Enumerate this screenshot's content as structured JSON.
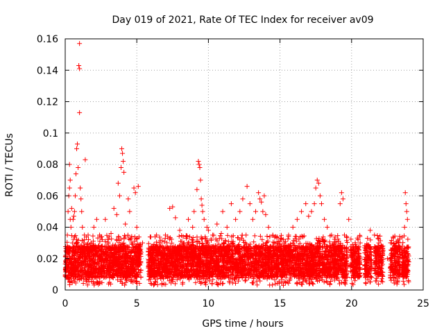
{
  "chart_data": {
    "type": "scatter",
    "title": "Day 019 of 2021, Rate Of TEC Index for receiver av09",
    "xlabel": "GPS time / hours",
    "ylabel": "ROTI / TECUs",
    "xlim": [
      0,
      25
    ],
    "ylim": [
      0,
      0.16
    ],
    "x_ticks": [
      "0",
      "5",
      "10",
      "15",
      "20",
      "25"
    ],
    "x_tick_values": [
      0,
      5,
      10,
      15,
      20,
      25
    ],
    "y_ticks": [
      "0",
      "0.02",
      "0.04",
      "0.06",
      "0.08",
      "0.1",
      "0.12",
      "0.14",
      "0.16"
    ],
    "y_tick_values": [
      0,
      0.02,
      0.04,
      0.06,
      0.08,
      0.1,
      0.12,
      0.14,
      0.16
    ],
    "grid": true,
    "marker": "+",
    "marker_color": "#ff0000",
    "series": [
      {
        "points": [
          [
            0.05,
            0.018
          ],
          [
            0.1,
            0.025
          ],
          [
            0.15,
            0.035
          ],
          [
            0.2,
            0.05
          ],
          [
            0.25,
            0.06
          ],
          [
            0.3,
            0.065
          ],
          [
            0.3,
            0.08
          ],
          [
            0.35,
            0.07
          ],
          [
            0.35,
            0.045
          ],
          [
            0.4,
            0.04
          ],
          [
            0.45,
            0.052
          ],
          [
            0.5,
            0.03
          ],
          [
            0.55,
            0.045
          ],
          [
            0.6,
            0.047
          ],
          [
            0.65,
            0.05
          ],
          [
            0.7,
            0.06
          ],
          [
            0.75,
            0.074
          ],
          [
            0.8,
            0.09
          ],
          [
            0.85,
            0.093
          ],
          [
            0.9,
            0.078
          ],
          [
            0.95,
            0.143
          ],
          [
            1.0,
            0.157
          ],
          [
            1.0,
            0.141
          ],
          [
            1.0,
            0.113
          ],
          [
            1.05,
            0.065
          ],
          [
            1.1,
            0.058
          ],
          [
            1.15,
            0.05
          ],
          [
            1.2,
            0.04
          ],
          [
            1.3,
            0.03
          ],
          [
            1.4,
            0.083
          ],
          [
            1.5,
            0.025
          ],
          [
            1.6,
            0.035
          ],
          [
            1.8,
            0.03
          ],
          [
            2.0,
            0.04
          ],
          [
            2.2,
            0.045
          ],
          [
            2.4,
            0.035
          ],
          [
            2.6,
            0.028
          ],
          [
            2.8,
            0.045
          ],
          [
            3.0,
            0.022
          ],
          [
            3.2,
            0.036
          ],
          [
            3.4,
            0.052
          ],
          [
            3.6,
            0.048
          ],
          [
            3.7,
            0.068
          ],
          [
            3.8,
            0.06
          ],
          [
            3.9,
            0.078
          ],
          [
            3.95,
            0.09
          ],
          [
            4.0,
            0.087
          ],
          [
            4.05,
            0.082
          ],
          [
            4.1,
            0.075
          ],
          [
            4.2,
            0.042
          ],
          [
            4.4,
            0.058
          ],
          [
            4.5,
            0.05
          ],
          [
            4.6,
            0.033
          ],
          [
            4.8,
            0.065
          ],
          [
            4.9,
            0.062
          ],
          [
            5.0,
            0.04
          ],
          [
            5.1,
            0.066
          ],
          [
            5.2,
            0.025
          ],
          [
            5.4,
            0.03
          ],
          [
            6.0,
            0.02
          ],
          [
            6.3,
            0.025
          ],
          [
            6.6,
            0.03
          ],
          [
            7.0,
            0.035
          ],
          [
            7.3,
            0.052
          ],
          [
            7.5,
            0.053
          ],
          [
            7.7,
            0.046
          ],
          [
            8.0,
            0.038
          ],
          [
            8.3,
            0.03
          ],
          [
            8.6,
            0.045
          ],
          [
            8.9,
            0.04
          ],
          [
            9.0,
            0.05
          ],
          [
            9.2,
            0.064
          ],
          [
            9.3,
            0.082
          ],
          [
            9.35,
            0.08
          ],
          [
            9.4,
            0.078
          ],
          [
            9.45,
            0.07
          ],
          [
            9.5,
            0.058
          ],
          [
            9.55,
            0.054
          ],
          [
            9.6,
            0.05
          ],
          [
            9.7,
            0.045
          ],
          [
            9.9,
            0.04
          ],
          [
            10.0,
            0.038
          ],
          [
            10.3,
            0.035
          ],
          [
            10.6,
            0.042
          ],
          [
            10.9,
            0.036
          ],
          [
            11.0,
            0.05
          ],
          [
            11.3,
            0.04
          ],
          [
            11.6,
            0.055
          ],
          [
            11.9,
            0.045
          ],
          [
            12.2,
            0.05
          ],
          [
            12.4,
            0.058
          ],
          [
            12.7,
            0.066
          ],
          [
            12.9,
            0.055
          ],
          [
            13.1,
            0.045
          ],
          [
            13.3,
            0.05
          ],
          [
            13.5,
            0.062
          ],
          [
            13.6,
            0.058
          ],
          [
            13.7,
            0.056
          ],
          [
            13.8,
            0.05
          ],
          [
            13.9,
            0.06
          ],
          [
            14.0,
            0.048
          ],
          [
            14.2,
            0.04
          ],
          [
            14.5,
            0.035
          ],
          [
            14.8,
            0.03
          ],
          [
            15.3,
            0.03
          ],
          [
            15.6,
            0.035
          ],
          [
            15.9,
            0.04
          ],
          [
            16.2,
            0.045
          ],
          [
            16.5,
            0.05
          ],
          [
            16.8,
            0.055
          ],
          [
            17.0,
            0.047
          ],
          [
            17.2,
            0.05
          ],
          [
            17.4,
            0.055
          ],
          [
            17.5,
            0.065
          ],
          [
            17.6,
            0.07
          ],
          [
            17.7,
            0.068
          ],
          [
            17.8,
            0.06
          ],
          [
            17.9,
            0.055
          ],
          [
            18.1,
            0.045
          ],
          [
            18.3,
            0.04
          ],
          [
            18.6,
            0.035
          ],
          [
            18.9,
            0.03
          ],
          [
            19.2,
            0.055
          ],
          [
            19.3,
            0.062
          ],
          [
            19.4,
            0.058
          ],
          [
            19.5,
            0.035
          ],
          [
            19.8,
            0.045
          ],
          [
            20.3,
            0.025
          ],
          [
            20.6,
            0.03
          ],
          [
            21.0,
            0.028
          ],
          [
            21.3,
            0.038
          ],
          [
            21.6,
            0.035
          ],
          [
            21.9,
            0.03
          ],
          [
            22.2,
            0.025
          ],
          [
            22.5,
            0.02
          ],
          [
            22.8,
            0.03
          ],
          [
            23.0,
            0.028
          ],
          [
            23.3,
            0.03
          ],
          [
            23.6,
            0.025
          ],
          [
            23.7,
            0.04
          ],
          [
            23.75,
            0.062
          ],
          [
            23.8,
            0.055
          ],
          [
            23.85,
            0.05
          ],
          [
            23.9,
            0.045
          ]
        ]
      }
    ],
    "dense_band": {
      "segments": [
        [
          0.0,
          5.3
        ],
        [
          5.8,
          15.0
        ],
        [
          15.0,
          19.7
        ],
        [
          19.9,
          20.6
        ],
        [
          20.9,
          21.4
        ],
        [
          21.6,
          22.2
        ],
        [
          22.7,
          23.4
        ],
        [
          23.5,
          24.0
        ]
      ],
      "y_range": [
        0.003,
        0.035
      ],
      "core_range": [
        0.008,
        0.028
      ]
    }
  }
}
